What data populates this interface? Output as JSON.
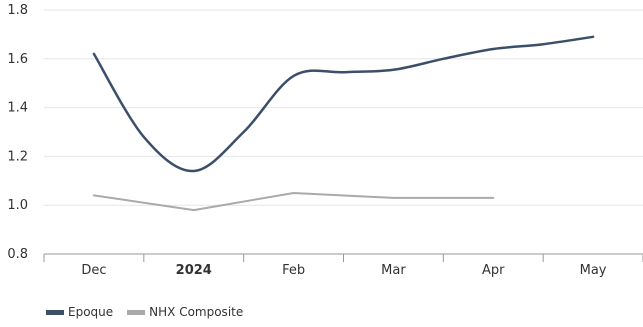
{
  "chart_data": {
    "type": "line",
    "categories": [
      "Dec",
      "2024",
      "Feb",
      "Mar",
      "Apr",
      "May"
    ],
    "bold_categories": [
      "2024"
    ],
    "ylim": [
      0.8,
      1.8
    ],
    "yticks": [
      "0.8",
      "1.0",
      "1.2",
      "1.4",
      "1.6",
      "1.8"
    ],
    "grid": true,
    "legend_position": "bottom-left",
    "series": [
      {
        "name": "Epoque",
        "color": "#3b4f6b",
        "smooth": true,
        "x": [
          0,
          0.5,
          1,
          1.5,
          2,
          2.5,
          3,
          3.5,
          4,
          4.5,
          5
        ],
        "y": [
          1.62,
          1.28,
          1.14,
          1.3,
          1.53,
          1.545,
          1.555,
          1.6,
          1.64,
          1.66,
          1.69
        ]
      },
      {
        "name": "NHX Composite",
        "color": "#aaaaaa",
        "smooth": false,
        "x": [
          0,
          1,
          2,
          3,
          4
        ],
        "y": [
          1.04,
          0.98,
          1.05,
          1.03,
          1.03
        ]
      }
    ]
  }
}
